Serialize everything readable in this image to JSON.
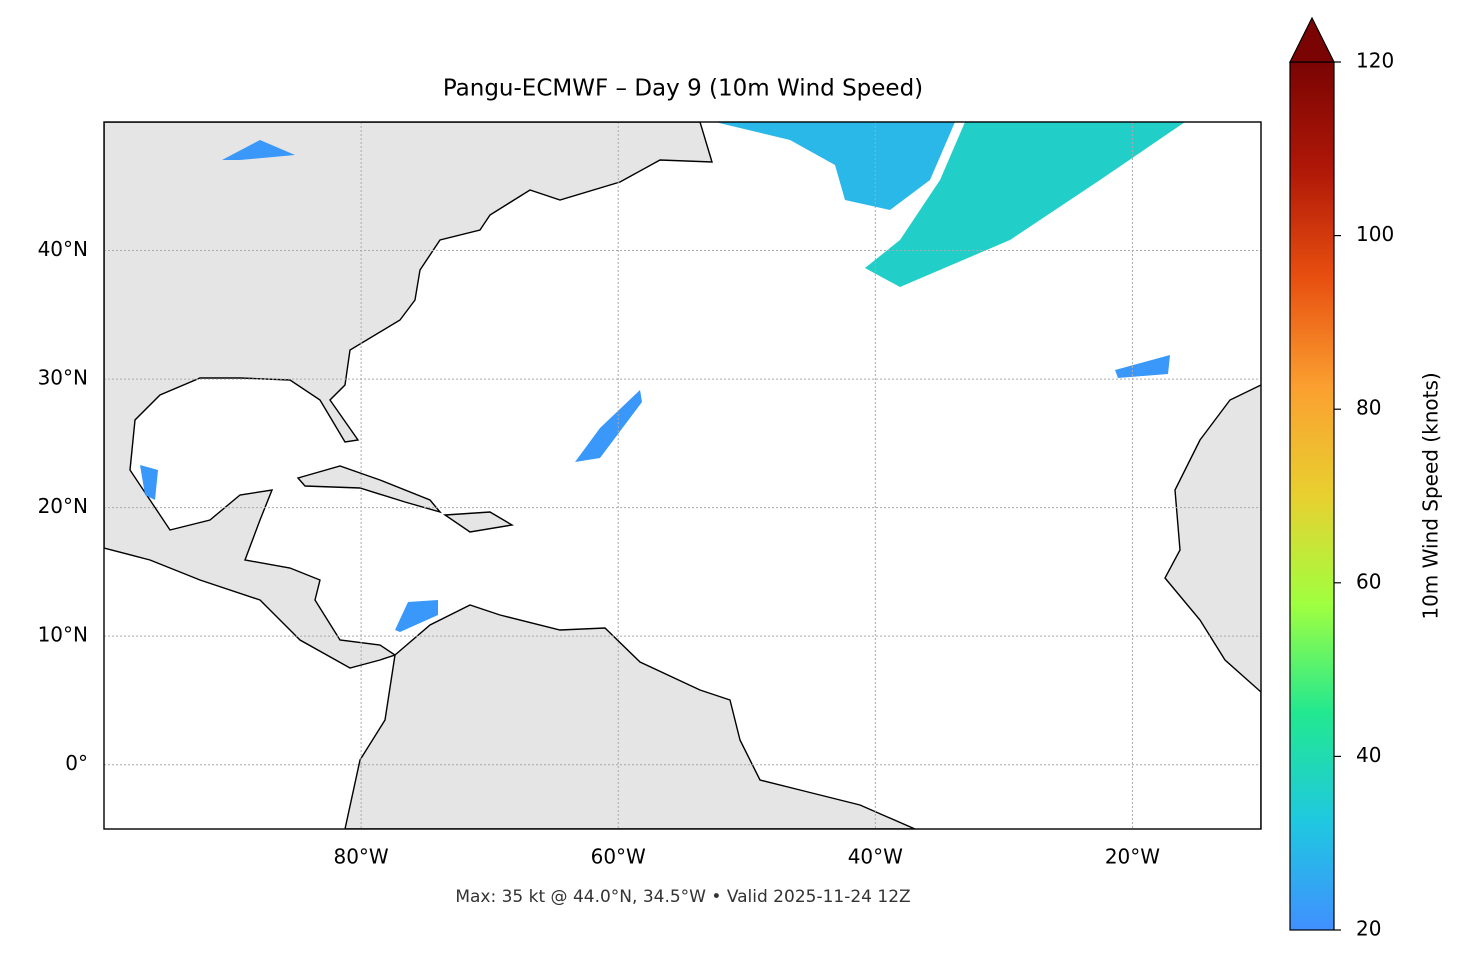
{
  "chart_data": {
    "type": "map",
    "title": "Pangu-ECMWF – Day 9 (10m Wind Speed)",
    "footnote": "Max: 35 kt @ 44.0°N, 34.5°W • Valid 2025-11-24 12Z",
    "xlim": [
      -100,
      -10
    ],
    "ylim": [
      -5,
      50
    ],
    "xticks": [
      {
        "value": -80,
        "label": "80°W"
      },
      {
        "value": -60,
        "label": "60°W"
      },
      {
        "value": -40,
        "label": "40°W"
      },
      {
        "value": -20,
        "label": "20°W"
      }
    ],
    "yticks": [
      {
        "value": 0,
        "label": "0°"
      },
      {
        "value": 10,
        "label": "10°N"
      },
      {
        "value": 20,
        "label": "20°N"
      },
      {
        "value": 30,
        "label": "30°N"
      },
      {
        "value": 40,
        "label": "40°N"
      }
    ],
    "grid": true,
    "colorbar": {
      "label": "10m Wind Speed (knots)",
      "lim": [
        20,
        120
      ],
      "ticks": [
        20,
        40,
        60,
        80,
        100,
        120
      ],
      "extend": "max",
      "colors": [
        "#4090ff",
        "#1fc8e0",
        "#22e890",
        "#a0ff40",
        "#e8d030",
        "#fba030",
        "#e85010",
        "#b01808",
        "#7a0403"
      ]
    }
  }
}
